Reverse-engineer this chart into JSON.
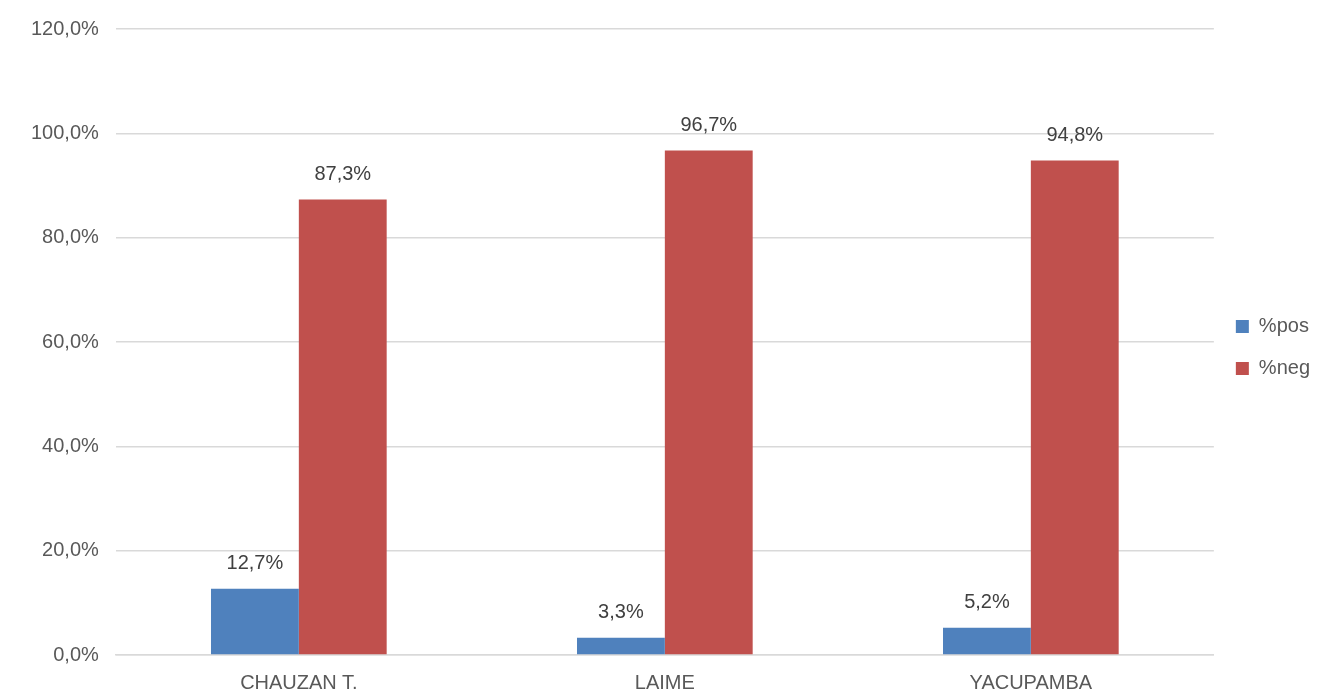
{
  "chart_data": {
    "type": "bar",
    "categories": [
      "CHAUZAN T.",
      "LAIME",
      "YACUPAMBA"
    ],
    "series": [
      {
        "name": "%pos",
        "color": "#4f81bd",
        "values": [
          12.7,
          3.3,
          5.2
        ],
        "value_labels": [
          "12,7%",
          "3,3%",
          "5,2%"
        ]
      },
      {
        "name": "%neg",
        "color": "#c0504d",
        "values": [
          87.3,
          96.7,
          94.8
        ],
        "value_labels": [
          "87,3%",
          "96,7%",
          "94,8%"
        ]
      }
    ],
    "ylim": [
      0,
      120
    ],
    "yticks": [
      {
        "value": 0,
        "label": "0,0%"
      },
      {
        "value": 20,
        "label": "20,0%"
      },
      {
        "value": 40,
        "label": "40,0%"
      },
      {
        "value": 60,
        "label": "60,0%"
      },
      {
        "value": 80,
        "label": "80,0%"
      },
      {
        "value": 100,
        "label": "100,0%"
      },
      {
        "value": 120,
        "label": "120,0%"
      }
    ],
    "grid": "y",
    "legend": "right"
  }
}
